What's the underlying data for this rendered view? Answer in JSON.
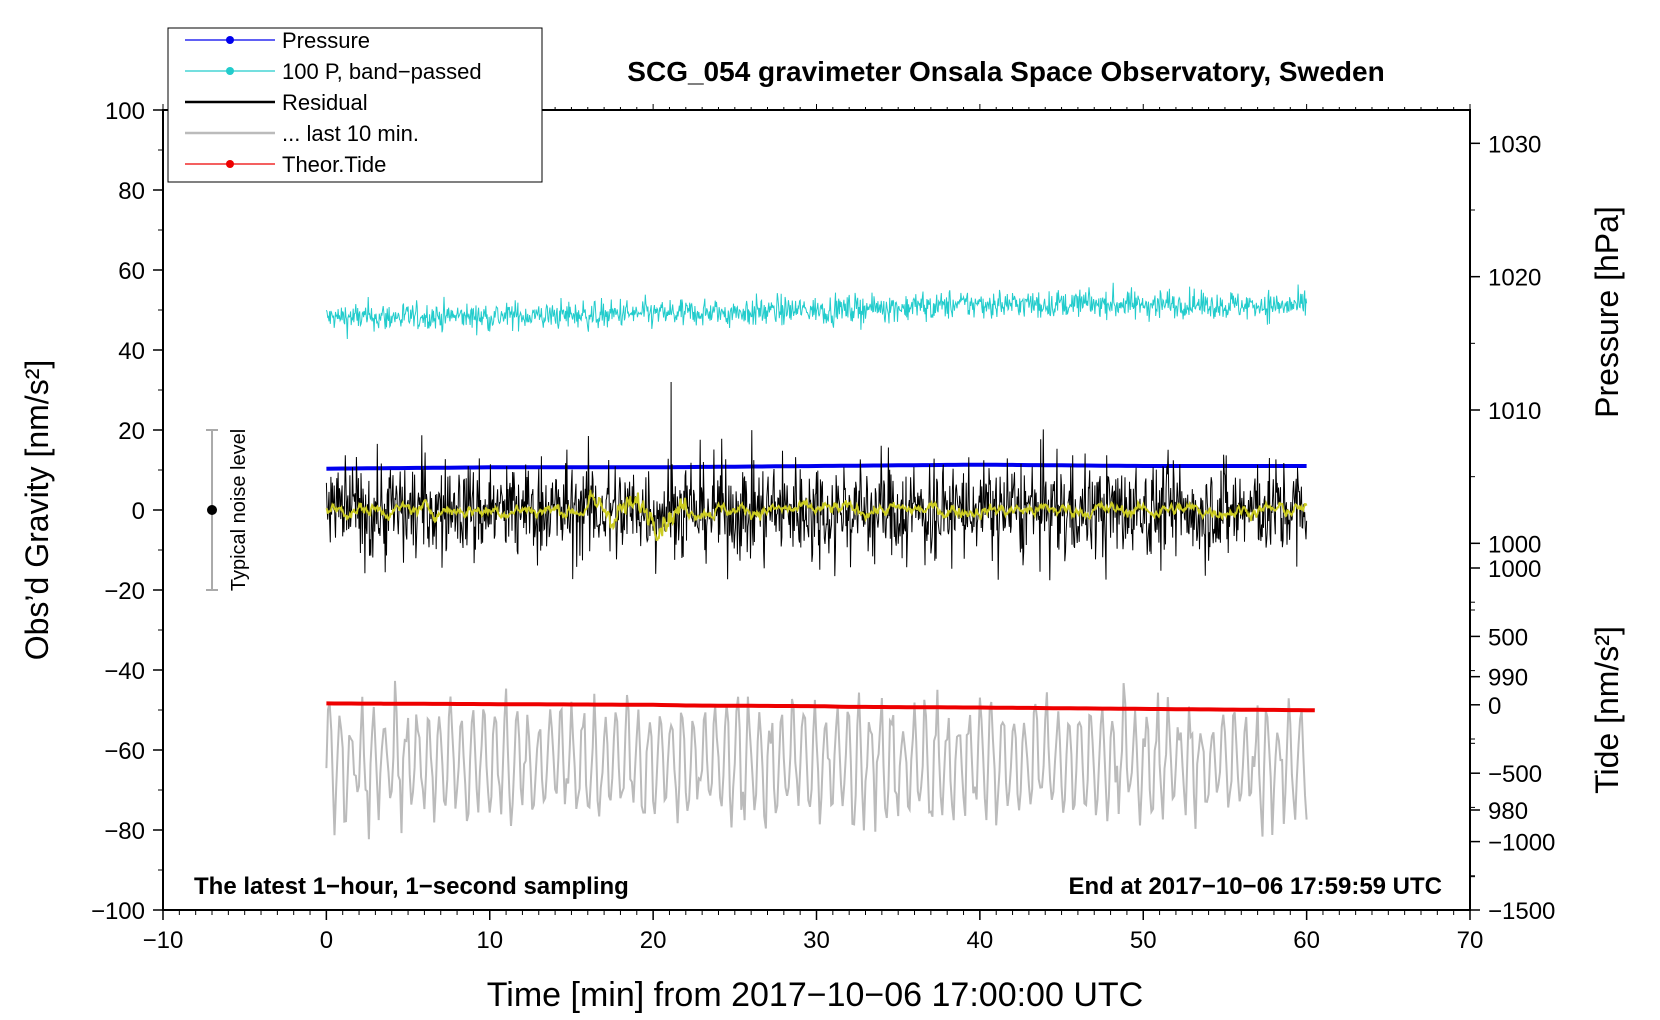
{
  "chart_data": {
    "type": "line",
    "title": "SCG_054 gravimeter Onsala Space Observatory, Sweden",
    "xlabel": "Time [min] from 2017−10−06 17:00:00 UTC",
    "ylabel_left": "Obs’d Gravity [nm/s²]",
    "ylabel_right_top": "Pressure [hPa]",
    "ylabel_right_bottom": "Tide [nm/s²]",
    "xlim": [
      -10,
      70
    ],
    "ylim": [
      -100,
      100
    ],
    "pressure_axis_range": [
      1032.5,
      972.5
    ],
    "tide_axis_range": [
      -1500,
      1000
    ],
    "x_ticks": [
      -10,
      0,
      10,
      20,
      30,
      40,
      50,
      60,
      70
    ],
    "x_tick_labels": [
      "−10",
      "0",
      "10",
      "20",
      "30",
      "40",
      "50",
      "60",
      "70"
    ],
    "y_ticks": [
      100,
      80,
      60,
      40,
      20,
      0,
      -20,
      -40,
      -60,
      -80,
      -100
    ],
    "y_tick_labels": [
      "100",
      "80",
      "60",
      "40",
      "20",
      "0",
      "−20",
      "−40",
      "−60",
      "−80",
      "−100"
    ],
    "pressure_ticks": [
      1030,
      1020,
      1010,
      1000,
      990,
      980
    ],
    "pressure_tick_labels": [
      "1030",
      "1020",
      "1010",
      "1000",
      "990",
      "980"
    ],
    "tide_ticks": [
      1000,
      500,
      0,
      -500,
      -1000,
      -1500
    ],
    "tide_tick_labels": [
      "1000",
      "500",
      "0",
      "−500",
      "−1000",
      "−1500"
    ],
    "legend": {
      "placement": "top-left",
      "entries": [
        {
          "label": "Pressure",
          "color": "#0000ee",
          "marker": true
        },
        {
          "label": "100 P, band−passed",
          "color": "#22cccc",
          "marker": true
        },
        {
          "label": "Residual",
          "color": "#000000",
          "marker": false
        },
        {
          "label": "... last 10 min.",
          "color": "#bbbbbb",
          "marker": false
        },
        {
          "label": "Theor.Tide",
          "color": "#ee0000",
          "marker": true
        }
      ]
    },
    "annotations": {
      "bottom_left": "The latest 1−hour, 1−second sampling",
      "bottom_right": "End at 2017−10−06 17:59:59 UTC",
      "noise_label": "Typical noise level"
    },
    "noise_bar": {
      "x": -7,
      "center": 0,
      "half_range": 20
    },
    "series": [
      {
        "name": "Pressure",
        "axis": "pressure",
        "color": "#0000ee",
        "x": [
          0,
          10,
          20,
          30,
          40,
          50,
          60
        ],
        "values": [
          1005.6,
          1005.7,
          1005.7,
          1005.8,
          1005.9,
          1005.8,
          1005.8
        ]
      },
      {
        "name": "100 P, band−passed",
        "axis": "gravity",
        "color": "#22cccc",
        "x": [
          0,
          10,
          20,
          30,
          40,
          50,
          60
        ],
        "values": [
          48,
          48.5,
          49,
          50,
          51.5,
          51.5,
          51
        ],
        "noise_amplitude": 2.5
      },
      {
        "name": "Residual",
        "axis": "gravity",
        "color": "#000000",
        "x": [
          0,
          10,
          20,
          30,
          40,
          50,
          60
        ],
        "values": [
          0,
          0,
          0,
          0,
          0,
          0,
          0
        ],
        "noise_amplitude": 9,
        "peak_max": 32,
        "peak_min": -27
      },
      {
        "name": "Filtered residual",
        "axis": "gravity",
        "color": "#cccc22",
        "x": [
          0,
          10,
          20,
          30,
          40,
          50,
          60
        ],
        "values": [
          0,
          0,
          0,
          0,
          0,
          0,
          0
        ],
        "noise_amplitude": 1.5
      },
      {
        "name": "... last 10 min.",
        "axis": "gravity",
        "color": "#bbbbbb",
        "x": [
          0,
          10,
          20,
          30,
          40,
          50,
          60
        ],
        "values": [
          -63,
          -63,
          -63,
          -63,
          -63,
          -63,
          -63
        ],
        "noise_amplitude": 12,
        "peak_max": -41,
        "peak_min": -88
      },
      {
        "name": "Theor.Tide",
        "axis": "tide",
        "color": "#ee0000",
        "x": [
          0,
          10,
          20,
          22,
          30,
          32,
          40,
          50,
          60.5
        ],
        "values": [
          10,
          5,
          0,
          -5,
          -10,
          -15,
          -20,
          -30,
          -40
        ]
      }
    ]
  }
}
